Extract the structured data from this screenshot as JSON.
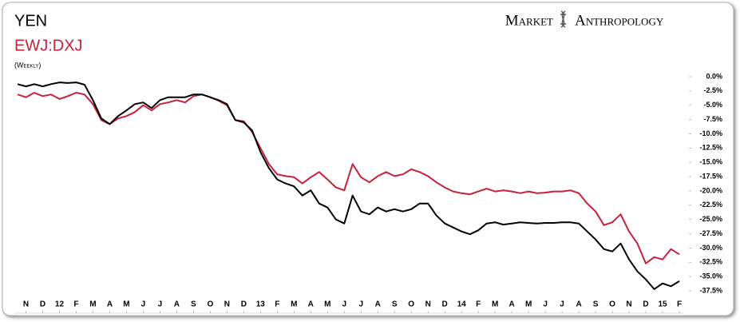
{
  "chart_data": {
    "type": "line",
    "logo": [
      "Market",
      "Anthropology"
    ],
    "subtitle": "(Weekly)",
    "categories": [
      null,
      "N",
      null,
      "D",
      null,
      "12",
      null,
      "F",
      null,
      "M",
      null,
      "A",
      null,
      "M",
      null,
      "J",
      null,
      "J",
      null,
      "A",
      null,
      "S",
      null,
      "O",
      null,
      "N",
      null,
      "D",
      null,
      "13",
      null,
      "F",
      null,
      "M",
      null,
      "A",
      null,
      "M",
      null,
      "J",
      null,
      "J",
      null,
      "A",
      null,
      "S",
      null,
      "O",
      null,
      "N",
      null,
      "D",
      null,
      "14",
      null,
      "F",
      null,
      "M",
      null,
      "A",
      null,
      "M",
      null,
      "J",
      null,
      "J",
      null,
      "A",
      null,
      "S",
      null,
      "O",
      null,
      "N",
      null,
      "D",
      null,
      "15",
      null,
      "F"
    ],
    "series": [
      {
        "name": "YEN",
        "color": "#000000",
        "values": [
          -1.3,
          -1.7,
          -1.3,
          -1.7,
          -1.3,
          -1.0,
          -1.1,
          -1.0,
          -1.4,
          -4.1,
          -7.3,
          -8.3,
          -6.9,
          -5.9,
          -4.8,
          -4.5,
          -5.5,
          -4.1,
          -3.6,
          -3.6,
          -3.6,
          -3.1,
          -3.1,
          -3.6,
          -4.1,
          -4.8,
          -7.6,
          -8.0,
          -9.4,
          -13.2,
          -16.0,
          -18.0,
          -18.7,
          -19.2,
          -20.8,
          -19.9,
          -22.2,
          -22.9,
          -25.0,
          -25.7,
          -20.8,
          -23.6,
          -24.1,
          -22.9,
          -23.6,
          -23.2,
          -23.6,
          -23.2,
          -22.2,
          -22.2,
          -24.3,
          -25.7,
          -26.4,
          -27.1,
          -27.6,
          -26.9,
          -25.7,
          -25.5,
          -25.9,
          -25.7,
          -25.5,
          -25.6,
          -25.7,
          -25.6,
          -25.6,
          -25.5,
          -25.5,
          -25.7,
          -27.1,
          -28.5,
          -30.2,
          -30.6,
          -29.2,
          -32.0,
          -34.1,
          -35.5,
          -37.2,
          -36.2,
          -36.7,
          -35.8
        ]
      },
      {
        "name": "EWJ:DXJ",
        "color": "#c8203a",
        "values": [
          -3.1,
          -3.6,
          -2.8,
          -3.4,
          -3.1,
          -3.9,
          -3.4,
          -2.8,
          -3.1,
          -4.8,
          -7.6,
          -8.3,
          -7.3,
          -6.9,
          -6.2,
          -5.0,
          -5.9,
          -4.8,
          -4.5,
          -4.1,
          -4.5,
          -3.4,
          -3.1,
          -3.6,
          -4.2,
          -5.0,
          -7.6,
          -7.8,
          -9.7,
          -12.5,
          -15.3,
          -17.1,
          -17.4,
          -17.6,
          -18.7,
          -17.6,
          -16.7,
          -18.0,
          -19.4,
          -19.9,
          -15.3,
          -17.6,
          -18.5,
          -17.4,
          -16.7,
          -17.4,
          -17.1,
          -16.2,
          -16.7,
          -17.4,
          -18.5,
          -19.4,
          -20.1,
          -20.4,
          -20.6,
          -20.1,
          -19.6,
          -20.1,
          -19.9,
          -20.1,
          -20.4,
          -20.1,
          -20.4,
          -20.3,
          -20.1,
          -20.1,
          -19.9,
          -20.4,
          -22.2,
          -23.6,
          -26.0,
          -25.5,
          -24.1,
          -27.1,
          -29.2,
          -32.7,
          -31.6,
          -32.0,
          -30.2,
          -31.1
        ]
      }
    ],
    "ylim": [
      -37.5,
      0
    ],
    "yticks": [
      {
        "value": 0,
        "label": "0.0%"
      },
      {
        "value": -2.5,
        "label": "-2.5%"
      },
      {
        "value": -5,
        "label": "-5.0%"
      },
      {
        "value": -7.5,
        "label": "-7.5%"
      },
      {
        "value": -10,
        "label": "-10.0%"
      },
      {
        "value": -12.5,
        "label": "-12.5%"
      },
      {
        "value": -15,
        "label": "-15.0%"
      },
      {
        "value": -17.5,
        "label": "-17.5%"
      },
      {
        "value": -20,
        "label": "-20.0%"
      },
      {
        "value": -22.5,
        "label": "-22.5%"
      },
      {
        "value": -25,
        "label": "-25.0%"
      },
      {
        "value": -27.5,
        "label": "-27.5%"
      },
      {
        "value": -30,
        "label": "-30.0%"
      },
      {
        "value": -32.5,
        "label": "-32.5%"
      },
      {
        "value": -35,
        "label": "-35.0%"
      },
      {
        "value": -37.5,
        "label": "-37.5%"
      }
    ],
    "grid": false
  }
}
